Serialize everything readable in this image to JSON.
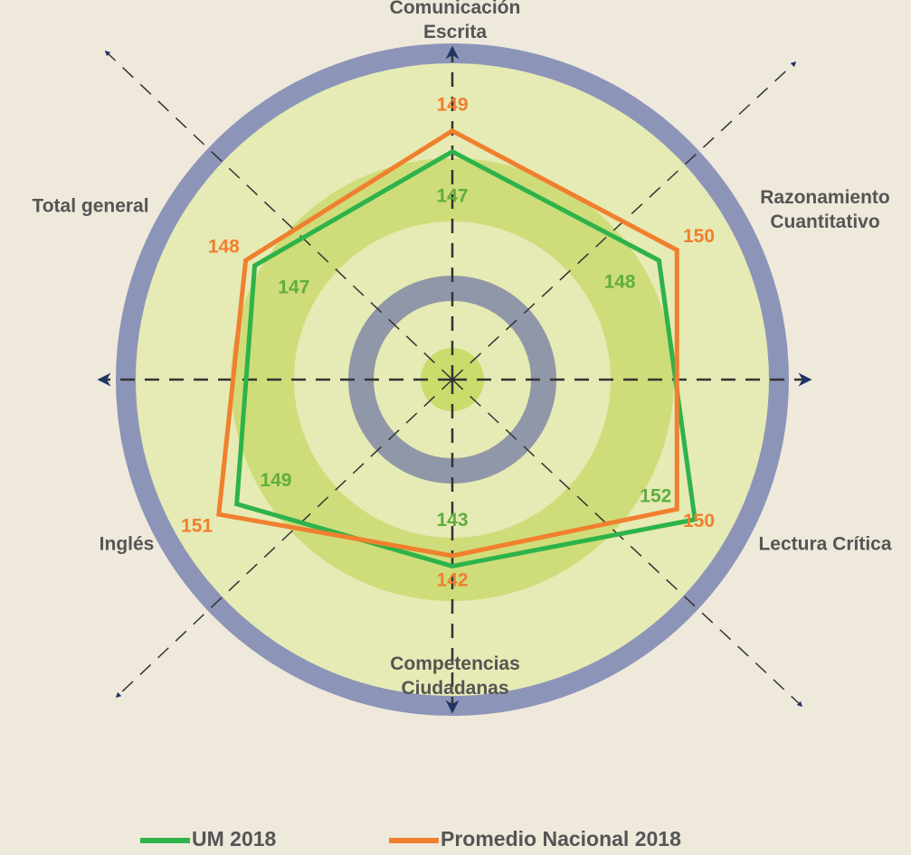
{
  "chart_data": {
    "type": "radar",
    "categories": [
      "Comunicación Escrita",
      "Razonamiento Cuantitativo",
      "Lectura Crítica",
      "Competencias Ciudadanas",
      "Inglés",
      "Total general"
    ],
    "rlim": [
      125,
      155
    ],
    "series": [
      {
        "name": "UM 2018",
        "color": "#2db34a",
        "values": [
          147,
          148,
          152,
          143,
          149,
          147
        ]
      },
      {
        "name": "Promedio Nacional 2018",
        "color": "#f07f2e",
        "values": [
          149,
          150,
          150,
          142,
          151,
          148
        ]
      }
    ]
  }
}
